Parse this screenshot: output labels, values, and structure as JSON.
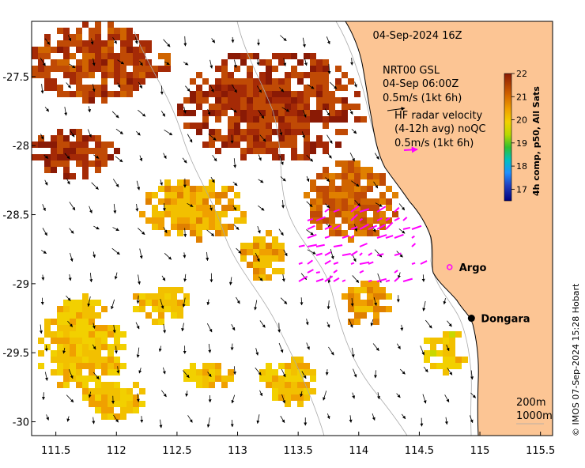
{
  "title": "04-Sep-2024 16Z",
  "x_ticks": [
    "111.5",
    "112",
    "112.5",
    "113",
    "113.5",
    "114",
    "114.5",
    "115",
    "115.5"
  ],
  "y_ticks": [
    "-27.5",
    "-28",
    "-28.5",
    "-29",
    "-29.5",
    "-30"
  ],
  "x_lim": [
    111.3,
    115.6
  ],
  "y_lim": [
    -30.1,
    -27.1
  ],
  "legend": {
    "gsl_line1": "NRT00 GSL",
    "gsl_line2": "04-Sep 06:00Z",
    "gsl_line3": "0.5m/s (1kt 6h)",
    "hf_line1": "HF radar velocity",
    "hf_line2": "(4-12h avg) noQC",
    "hf_line3": "0.5m/s (1kt 6h)"
  },
  "colorbar": {
    "title": "4h comp, p50, All Sats",
    "ticks": [
      "22",
      "21",
      "20",
      "19",
      "18",
      "17"
    ],
    "range": [
      16.5,
      22
    ]
  },
  "places": [
    {
      "name": "Argo",
      "lon": 114.75,
      "lat": -28.88,
      "marker": "circle-magenta"
    },
    {
      "name": "Dongara",
      "lon": 114.93,
      "lat": -29.25,
      "marker": "dot-black"
    }
  ],
  "depth_labels": {
    "a": "200m",
    "b": "1000m"
  },
  "credit": "© IMOS 07-Sep-2024 15:28 Hobart",
  "colors": {
    "land": "#fcc594",
    "hf_arrow": "#ff00ff",
    "gsl_arrow": "#000000",
    "isobath": "#a9a9a9"
  }
}
